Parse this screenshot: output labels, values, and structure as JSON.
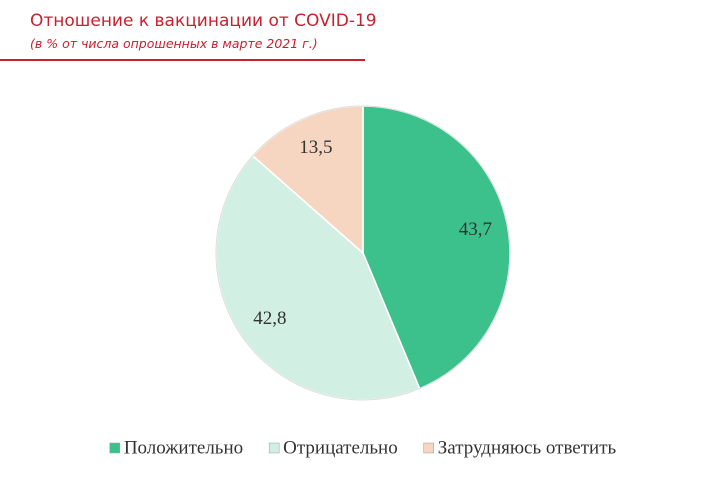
{
  "chart_data": {
    "type": "pie",
    "title": "Отношение к вакцинации от COVID-19",
    "subtitle": "(в % от числа опрошенных в марте 2021 г.)",
    "categories": [
      "Положительно",
      "Отрицательно",
      "Затрудняюсь ответить"
    ],
    "values": [
      43.7,
      42.8,
      13.5
    ],
    "value_labels": [
      "43,7",
      "42,8",
      "13,5"
    ],
    "colors": [
      "#3cc18d",
      "#d2efe4",
      "#f6d6c1"
    ],
    "legend": "bottom"
  }
}
